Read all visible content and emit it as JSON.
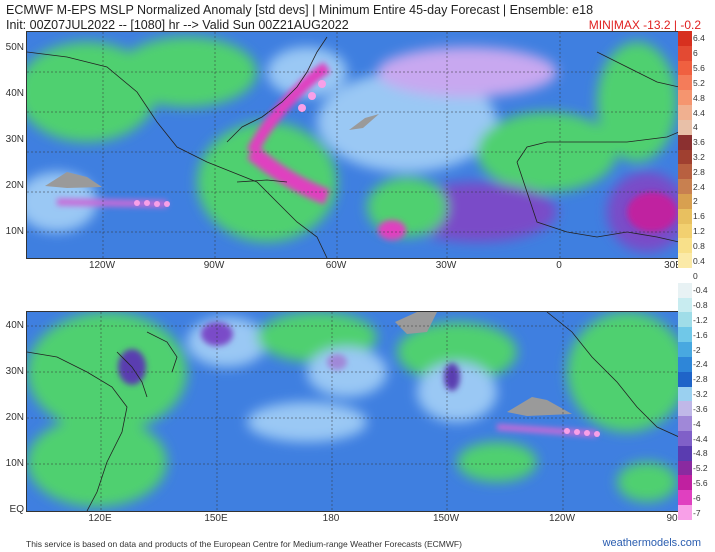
{
  "header": {
    "title_line1": "ECMWF M-EPS MSLP Normalized Anomaly [std devs] | Minimum Entire 45-day Forecast | Ensemble: e18",
    "title_line2": "Init: 00Z07JUL2022 -- [1080] hr --> Valid Sun 00Z21AUG2022",
    "minmax": "MIN|MAX -13.2 | -0.2"
  },
  "top_map": {
    "lat_labels": [
      "50N",
      "40N",
      "30N",
      "20N",
      "10N"
    ],
    "lon_labels": [
      "120W",
      "90W",
      "60W",
      "30W",
      "0",
      "30E"
    ]
  },
  "bottom_map": {
    "lat_labels": [
      "40N",
      "30N",
      "20N",
      "10N",
      "EQ"
    ],
    "lon_labels": [
      "120E",
      "150E",
      "180",
      "150W",
      "120W",
      "90"
    ]
  },
  "colorbar": {
    "labels": [
      "6.4",
      "6",
      "5.6",
      "5.2",
      "4.8",
      "4.4",
      "4",
      "3.6",
      "3.2",
      "2.8",
      "2.4",
      "2",
      "1.6",
      "1.2",
      "0.8",
      "0.4",
      "0",
      "-0.4",
      "-0.8",
      "-1.2",
      "-1.6",
      "-2",
      "-2.4",
      "-2.8",
      "-3.2",
      "-3.6",
      "-4",
      "-4.4",
      "-4.8",
      "-5.2",
      "-5.6",
      "-6",
      "-7"
    ],
    "colors": [
      "#d7301f",
      "#e34a33",
      "#f06040",
      "#f47c5a",
      "#f5956f",
      "#f0b090",
      "#e8c0a8",
      "#8b3030",
      "#a04030",
      "#b86040",
      "#c88050",
      "#d8a050",
      "#e8c060",
      "#f2d070",
      "#f8e08a",
      "#fbeaa8",
      "#ffffff",
      "#e8f2f4",
      "#c8ecf0",
      "#a0dde8",
      "#70c8e8",
      "#48a8e0",
      "#2e86d8",
      "#1f64c8",
      "#9ad0f0",
      "#c0b8e8",
      "#a088d8",
      "#8060c8",
      "#5a3cb0",
      "#8a2aa0",
      "#c020a0",
      "#e040c0",
      "#f8a0e8"
    ]
  },
  "footer": {
    "source": "This service is based on data and products of the European Centre for Medium-range Weather Forecasts (ECMWF)",
    "brand": "weathermodels.com"
  },
  "colors": {
    "ocean_blue": "#3f7fe0",
    "light_blue": "#9ac8f4",
    "green": "#4fd070",
    "purple": "#7a4cc8",
    "magenta": "#e040c0",
    "land_grey": "#9a9a9a"
  }
}
